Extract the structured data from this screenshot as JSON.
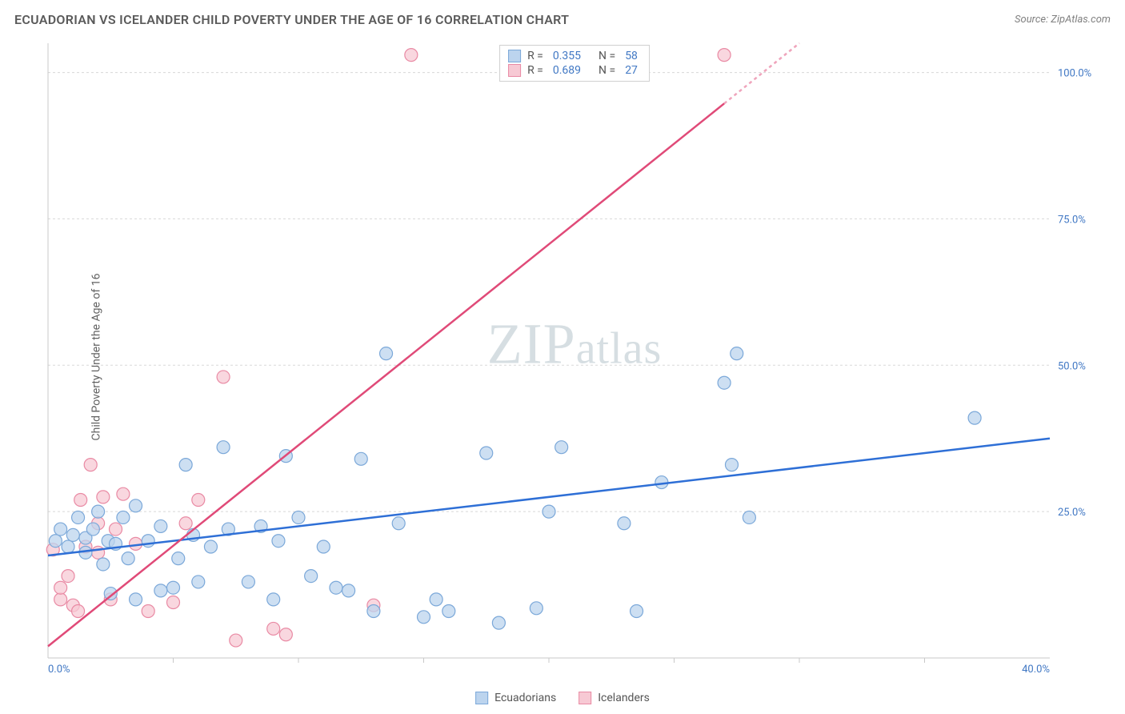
{
  "header": {
    "title": "ECUADORIAN VS ICELANDER CHILD POVERTY UNDER THE AGE OF 16 CORRELATION CHART",
    "source": "Source: ZipAtlas.com"
  },
  "ylabel": "Child Poverty Under the Age of 16",
  "watermark": {
    "zip": "ZIP",
    "atlas": "atlas"
  },
  "chart": {
    "type": "scatter",
    "background_color": "#ffffff",
    "grid_color": "#d8d8d8",
    "axis_color": "#c8c8c8",
    "xlim": [
      0,
      40
    ],
    "ylim": [
      0,
      105
    ],
    "xticks": [
      0,
      40
    ],
    "xtick_labels": [
      "0.0%",
      "40.0%"
    ],
    "xtick_minor": [
      5,
      10,
      15,
      20,
      25,
      30,
      35
    ],
    "yticks": [
      25,
      50,
      75,
      100
    ],
    "ytick_labels": [
      "25.0%",
      "50.0%",
      "75.0%",
      "100.0%"
    ],
    "marker_radius": 8,
    "line_width": 2.5,
    "series": [
      {
        "name": "Ecuadorians",
        "fill": "#bcd4ee",
        "stroke": "#7ba8d9",
        "line_color": "#2e6fd6",
        "r": 0.355,
        "n": 58,
        "trend": {
          "x1": 0,
          "y1": 17.5,
          "x2": 40,
          "y2": 37.5
        },
        "points": [
          [
            0.3,
            20
          ],
          [
            0.5,
            22
          ],
          [
            0.8,
            19
          ],
          [
            1.0,
            21
          ],
          [
            1.2,
            24
          ],
          [
            1.5,
            18
          ],
          [
            1.5,
            20.5
          ],
          [
            1.8,
            22
          ],
          [
            2.0,
            25
          ],
          [
            2.2,
            16
          ],
          [
            2.4,
            20
          ],
          [
            2.5,
            11
          ],
          [
            2.7,
            19.5
          ],
          [
            3.0,
            24
          ],
          [
            3.2,
            17
          ],
          [
            3.5,
            10
          ],
          [
            3.5,
            26
          ],
          [
            4.0,
            20
          ],
          [
            4.5,
            11.5
          ],
          [
            4.5,
            22.5
          ],
          [
            5.0,
            12
          ],
          [
            5.2,
            17
          ],
          [
            5.5,
            33
          ],
          [
            5.8,
            21
          ],
          [
            6.0,
            13
          ],
          [
            6.5,
            19
          ],
          [
            7.0,
            36
          ],
          [
            7.2,
            22
          ],
          [
            8.0,
            13
          ],
          [
            8.5,
            22.5
          ],
          [
            9.0,
            10
          ],
          [
            9.2,
            20
          ],
          [
            9.5,
            34.5
          ],
          [
            10.0,
            24
          ],
          [
            10.5,
            14
          ],
          [
            11.0,
            19
          ],
          [
            11.5,
            12
          ],
          [
            12.0,
            11.5
          ],
          [
            12.5,
            34
          ],
          [
            13.0,
            8
          ],
          [
            13.5,
            52
          ],
          [
            14.0,
            23
          ],
          [
            15.0,
            7
          ],
          [
            15.5,
            10
          ],
          [
            16.0,
            8
          ],
          [
            17.5,
            35
          ],
          [
            18.0,
            6
          ],
          [
            19.5,
            8.5
          ],
          [
            20.0,
            25
          ],
          [
            20.5,
            36
          ],
          [
            23.0,
            23
          ],
          [
            23.5,
            8
          ],
          [
            24.5,
            30
          ],
          [
            27.0,
            47
          ],
          [
            27.3,
            33
          ],
          [
            27.5,
            52
          ],
          [
            28.0,
            24
          ],
          [
            37.0,
            41
          ]
        ]
      },
      {
        "name": "Icelanders",
        "fill": "#f7c9d4",
        "stroke": "#e98aa4",
        "line_color": "#e04a78",
        "r": 0.689,
        "n": 27,
        "trend": {
          "x1": 0,
          "y1": 2,
          "x2": 30,
          "y2": 105
        },
        "trend_dash_after_x": 27,
        "points": [
          [
            0.2,
            18.5
          ],
          [
            0.5,
            10
          ],
          [
            0.5,
            12
          ],
          [
            0.8,
            14
          ],
          [
            1.0,
            9
          ],
          [
            1.2,
            8
          ],
          [
            1.3,
            27
          ],
          [
            1.5,
            19
          ],
          [
            1.7,
            33
          ],
          [
            2.0,
            18
          ],
          [
            2.0,
            23
          ],
          [
            2.2,
            27.5
          ],
          [
            2.5,
            10
          ],
          [
            2.7,
            22
          ],
          [
            3.0,
            28
          ],
          [
            3.5,
            19.5
          ],
          [
            4.0,
            8
          ],
          [
            5.0,
            9.5
          ],
          [
            5.5,
            23
          ],
          [
            6.0,
            27
          ],
          [
            7.0,
            48
          ],
          [
            7.5,
            3
          ],
          [
            9.0,
            5
          ],
          [
            9.5,
            4
          ],
          [
            13.0,
            9
          ],
          [
            14.5,
            103
          ],
          [
            27.0,
            103
          ]
        ]
      }
    ]
  },
  "legend_top_rows": [
    {
      "series": 0,
      "r_label": "R =",
      "n_label": "N ="
    },
    {
      "series": 1,
      "r_label": "R =",
      "n_label": "N ="
    }
  ],
  "legend_bottom": [
    {
      "series": 0
    },
    {
      "series": 1
    }
  ]
}
